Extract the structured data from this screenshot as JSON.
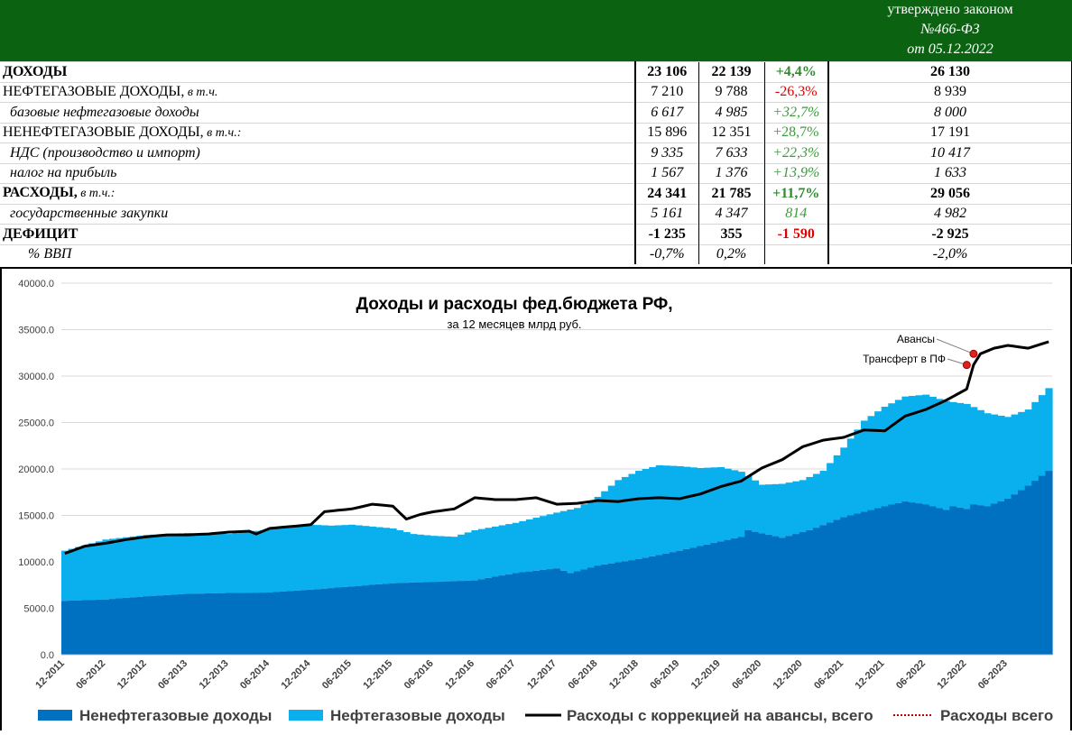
{
  "header": {
    "approved_line1": "утверждено законом",
    "approved_line2": "№466-ФЗ",
    "approved_line3": "от 05.12.2022"
  },
  "table": {
    "rows": [
      {
        "label": "ДОХОДЫ",
        "suffix": "",
        "style": "bold",
        "v1": "23 106",
        "v2": "22 139",
        "change": "+4,4%",
        "change_color": "#2e8b2e",
        "approved": "26 130"
      },
      {
        "label": "НЕФТЕГАЗОВЫЕ ДОХОДЫ,",
        "suffix": " в т.ч.",
        "style": "normal",
        "v1": "7 210",
        "v2": "9 788",
        "change": "-26,3%",
        "change_color": "#e00000",
        "approved": "8 939"
      },
      {
        "label": "  базовые нефтегазовые доходы",
        "suffix": "",
        "style": "italic",
        "v1": "6 617",
        "v2": "4 985",
        "change": "+32,7%",
        "change_color": "#3c9b3c",
        "approved": "8 000"
      },
      {
        "label": "НЕНЕФТЕГАЗОВЫЕ ДОХОДЫ,",
        "suffix": " в т.ч.:",
        "style": "normal",
        "v1": "15 896",
        "v2": "12 351",
        "change": "+28,7%",
        "change_color": "#3c9b3c",
        "approved": "17 191"
      },
      {
        "label": "  НДС (производство и импорт)",
        "suffix": "",
        "style": "italic",
        "v1": "9 335",
        "v2": "7 633",
        "change": "+22,3%",
        "change_color": "#3c9b3c",
        "approved": "10 417"
      },
      {
        "label": "  налог на прибыль",
        "suffix": "",
        "style": "italic",
        "v1": "1 567",
        "v2": "1 376",
        "change": "+13,9%",
        "change_color": "#3c9b3c",
        "approved": "1 633"
      },
      {
        "label": "РАСХОДЫ,",
        "suffix": " в т.ч.:",
        "style": "bold",
        "v1": "24 341",
        "v2": "21 785",
        "change": "+11,7%",
        "change_color": "#2e8b2e",
        "approved": "29 056"
      },
      {
        "label": "  государственные закупки",
        "suffix": "",
        "style": "italic",
        "v1": "5 161",
        "v2": "4 347",
        "change": "814",
        "change_color": "#3c9b3c",
        "approved": "4 982"
      },
      {
        "label": "ДЕФИЦИТ",
        "suffix": "",
        "style": "bold",
        "v1": "-1 235",
        "v2": "355",
        "change": "-1 590",
        "change_color": "#e00000",
        "approved": "-2 925"
      },
      {
        "label": "       % ВВП",
        "suffix": "",
        "style": "italic",
        "v1": "-0,7%",
        "v2": "0,2%",
        "change": "",
        "change_color": "#000000",
        "approved": "-2,0%"
      }
    ]
  },
  "chart_data": {
    "type": "area",
    "title": "Доходы и расходы фед.бюджета РФ,",
    "subtitle": "за 12 месяцев млрд руб.",
    "ylim": [
      0,
      40000
    ],
    "y_ticks": [
      "0.0",
      "5000.0",
      "10000.0",
      "15000.0",
      "20000.0",
      "25000.0",
      "30000.0",
      "35000.0",
      "40000.0"
    ],
    "x_tick_labels": [
      "12-2011",
      "06-2012",
      "12-2012",
      "06-2013",
      "12-2013",
      "06-2014",
      "12-2014",
      "06-2015",
      "12-2015",
      "06-2016",
      "12-2016",
      "06-2017",
      "12-2017",
      "06-2018",
      "12-2018",
      "06-2019",
      "12-2019",
      "06-2020",
      "12-2020",
      "06-2021",
      "12-2021",
      "06-2022",
      "12-2022",
      "06-2023"
    ],
    "grid": true,
    "legend_position": "bottom",
    "colors": {
      "non_oil": "#0070c0",
      "oil": "#0ab0ee",
      "expenses": "#000000",
      "expenses_total": "#c00000"
    },
    "legend": [
      {
        "label": "Ненефтегазовые доходы",
        "key": "non_oil"
      },
      {
        "label": "Нефтегазовые доходы",
        "key": "oil"
      },
      {
        "label": "Расходы с коррекцией на авансы, всего",
        "key": "expenses"
      },
      {
        "label": "Расходы всего",
        "key": "expenses_total"
      }
    ],
    "annotations": [
      {
        "text": "Авансы",
        "point_date": "2023-01",
        "value": 32400
      },
      {
        "text": "Трансферт в ПФ",
        "point_date": "2022-12",
        "value": 31200
      }
    ],
    "series": [
      {
        "name": "Ненефтегазовые доходы",
        "key": "non_oil",
        "anchors": [
          [
            "2011-12",
            5800
          ],
          [
            "2012-06",
            5950
          ],
          [
            "2012-12",
            6300
          ],
          [
            "2013-06",
            6550
          ],
          [
            "2013-12",
            6650
          ],
          [
            "2014-06",
            6700
          ],
          [
            "2014-12",
            7000
          ],
          [
            "2015-06",
            7350
          ],
          [
            "2015-12",
            7700
          ],
          [
            "2016-06",
            7850
          ],
          [
            "2016-12",
            8000
          ],
          [
            "2017-06",
            8800
          ],
          [
            "2017-12",
            9300
          ],
          [
            "2018-02",
            8800
          ],
          [
            "2018-06",
            9600
          ],
          [
            "2018-12",
            10300
          ],
          [
            "2019-06",
            11200
          ],
          [
            "2019-12",
            12200
          ],
          [
            "2020-03",
            12700
          ],
          [
            "2020-04",
            13400
          ],
          [
            "2020-09",
            12600
          ],
          [
            "2021-01",
            13400
          ],
          [
            "2021-06",
            14800
          ],
          [
            "2021-12",
            16000
          ],
          [
            "2022-03",
            16500
          ],
          [
            "2022-06",
            16200
          ],
          [
            "2022-09",
            15600
          ],
          [
            "2022-10",
            16000
          ],
          [
            "2022-12",
            15700
          ],
          [
            "2023-01",
            16200
          ],
          [
            "2023-03",
            16000
          ],
          [
            "2023-06",
            16800
          ],
          [
            "2023-09",
            18200
          ],
          [
            "2023-12",
            19800
          ]
        ]
      },
      {
        "name": "Нефтегазовые доходы",
        "key": "oil",
        "total_anchors": [
          [
            "2011-12",
            11200
          ],
          [
            "2012-06",
            12400
          ],
          [
            "2012-12",
            12900
          ],
          [
            "2013-06",
            13100
          ],
          [
            "2013-12",
            13000
          ],
          [
            "2014-06",
            13500
          ],
          [
            "2014-12",
            14000
          ],
          [
            "2015-03",
            13900
          ],
          [
            "2015-06",
            14000
          ],
          [
            "2015-12",
            13600
          ],
          [
            "2016-03",
            13000
          ],
          [
            "2016-06",
            12800
          ],
          [
            "2016-09",
            12700
          ],
          [
            "2016-12",
            13400
          ],
          [
            "2017-06",
            14200
          ],
          [
            "2017-12",
            15300
          ],
          [
            "2018-03",
            15800
          ],
          [
            "2018-06",
            17000
          ],
          [
            "2018-09",
            18800
          ],
          [
            "2018-12",
            19800
          ],
          [
            "2019-03",
            20400
          ],
          [
            "2019-06",
            20300
          ],
          [
            "2019-09",
            20100
          ],
          [
            "2019-12",
            20200
          ],
          [
            "2020-03",
            19700
          ],
          [
            "2020-06",
            18300
          ],
          [
            "2020-09",
            18400
          ],
          [
            "2020-12",
            18800
          ],
          [
            "2021-03",
            19800
          ],
          [
            "2021-06",
            22300
          ],
          [
            "2021-09",
            25200
          ],
          [
            "2021-12",
            26700
          ],
          [
            "2022-03",
            27800
          ],
          [
            "2022-06",
            28000
          ],
          [
            "2022-09",
            27300
          ],
          [
            "2022-12",
            27000
          ],
          [
            "2023-03",
            26000
          ],
          [
            "2023-06",
            25600
          ],
          [
            "2023-09",
            26400
          ],
          [
            "2023-10",
            27200
          ],
          [
            "2023-12",
            28700
          ]
        ]
      },
      {
        "name": "Расходы с коррекцией на авансы, всего",
        "key": "expenses",
        "anchors": [
          [
            "2011-12",
            10900
          ],
          [
            "2012-03",
            11700
          ],
          [
            "2012-06",
            12000
          ],
          [
            "2012-09",
            12400
          ],
          [
            "2012-12",
            12700
          ],
          [
            "2013-03",
            12900
          ],
          [
            "2013-06",
            12900
          ],
          [
            "2013-09",
            13000
          ],
          [
            "2013-12",
            13200
          ],
          [
            "2014-03",
            13300
          ],
          [
            "2014-04",
            13000
          ],
          [
            "2014-06",
            13600
          ],
          [
            "2014-09",
            13800
          ],
          [
            "2014-12",
            14000
          ],
          [
            "2015-02",
            15400
          ],
          [
            "2015-06",
            15700
          ],
          [
            "2015-09",
            16200
          ],
          [
            "2015-12",
            16000
          ],
          [
            "2016-02",
            14600
          ],
          [
            "2016-04",
            15100
          ],
          [
            "2016-06",
            15400
          ],
          [
            "2016-09",
            15700
          ],
          [
            "2016-12",
            16900
          ],
          [
            "2017-03",
            16700
          ],
          [
            "2017-06",
            16700
          ],
          [
            "2017-09",
            16900
          ],
          [
            "2017-12",
            16200
          ],
          [
            "2018-03",
            16300
          ],
          [
            "2018-06",
            16600
          ],
          [
            "2018-09",
            16500
          ],
          [
            "2018-12",
            16800
          ],
          [
            "2019-03",
            16900
          ],
          [
            "2019-06",
            16800
          ],
          [
            "2019-09",
            17300
          ],
          [
            "2019-12",
            18100
          ],
          [
            "2020-03",
            18700
          ],
          [
            "2020-06",
            20100
          ],
          [
            "2020-09",
            21000
          ],
          [
            "2020-12",
            22400
          ],
          [
            "2021-03",
            23100
          ],
          [
            "2021-06",
            23400
          ],
          [
            "2021-09",
            24200
          ],
          [
            "2021-12",
            24100
          ],
          [
            "2022-03",
            25700
          ],
          [
            "2022-06",
            26400
          ],
          [
            "2022-09",
            27400
          ],
          [
            "2022-12",
            28600
          ],
          [
            "2023-01",
            31200
          ],
          [
            "2023-02",
            32400
          ],
          [
            "2023-04",
            33000
          ],
          [
            "2023-06",
            33300
          ],
          [
            "2023-09",
            33000
          ],
          [
            "2023-12",
            33700
          ]
        ]
      }
    ]
  }
}
